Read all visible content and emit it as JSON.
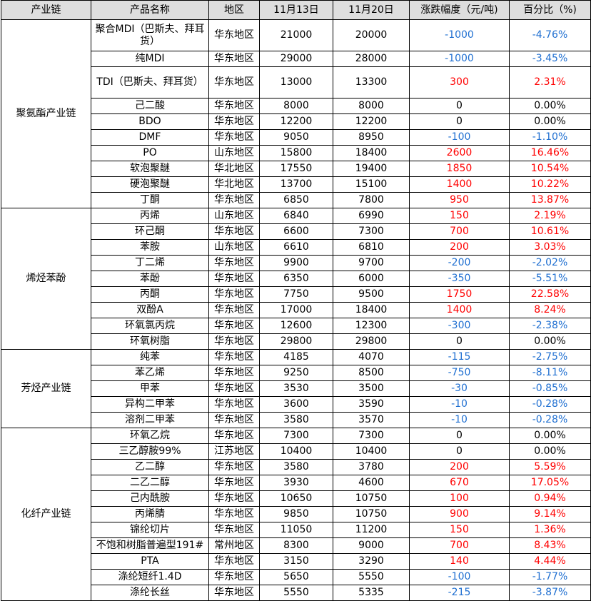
{
  "headers": [
    "产业链",
    "产品名称",
    "地区",
    "11月13日",
    "11月20日",
    "涨跌幅度（元/吨)",
    "百分比（%)"
  ],
  "groups": [
    {
      "name": "聚氨酯产业链",
      "rows": [
        {
          "product": "聚合MDI（巴斯夫、拜耳货）",
          "region": "华东地区",
          "d13": "21000",
          "d20": "20000",
          "change": "-1000",
          "pct": "-4.76%",
          "tall": true
        },
        {
          "product": "纯MDI",
          "region": "华东地区",
          "d13": "29000",
          "d20": "28000",
          "change": "-1000",
          "pct": "-3.45%"
        },
        {
          "product": "TDI（巴斯夫、拜耳货）",
          "region": "华东地区",
          "d13": "13000",
          "d20": "13300",
          "change": "300",
          "pct": "2.31%",
          "tall": true
        },
        {
          "product": "己二酸",
          "region": "华东地区",
          "d13": "8000",
          "d20": "8000",
          "change": "0",
          "pct": "0.00%"
        },
        {
          "product": "BDO",
          "region": "华东地区",
          "d13": "12200",
          "d20": "12200",
          "change": "0",
          "pct": "0.00%"
        },
        {
          "product": "DMF",
          "region": "华东地区",
          "d13": "9050",
          "d20": "8950",
          "change": "-100",
          "pct": "-1.10%"
        },
        {
          "product": "PO",
          "region": "山东地区",
          "d13": "15800",
          "d20": "18400",
          "change": "2600",
          "pct": "16.46%"
        },
        {
          "product": "软泡聚醚",
          "region": "华北地区",
          "d13": "17550",
          "d20": "19400",
          "change": "1850",
          "pct": "10.54%"
        },
        {
          "product": "硬泡聚醚",
          "region": "华北地区",
          "d13": "13700",
          "d20": "15100",
          "change": "1400",
          "pct": "10.22%"
        },
        {
          "product": "丁酮",
          "region": "华东地区",
          "d13": "6850",
          "d20": "7800",
          "change": "950",
          "pct": "13.87%"
        }
      ]
    },
    {
      "name": "烯烃苯酚",
      "rows": [
        {
          "product": "丙烯",
          "region": "山东地区",
          "d13": "6840",
          "d20": "6990",
          "change": "150",
          "pct": "2.19%"
        },
        {
          "product": "环己酮",
          "region": "华东地区",
          "d13": "6600",
          "d20": "7300",
          "change": "700",
          "pct": "10.61%"
        },
        {
          "product": "苯胺",
          "region": "山东地区",
          "d13": "6610",
          "d20": "6810",
          "change": "200",
          "pct": "3.03%"
        },
        {
          "product": "丁二烯",
          "region": "华东地区",
          "d13": "9900",
          "d20": "9700",
          "change": "-200",
          "pct": "-2.02%"
        },
        {
          "product": "苯酚",
          "region": "华东地区",
          "d13": "6350",
          "d20": "6000",
          "change": "-350",
          "pct": "-5.51%"
        },
        {
          "product": "丙酮",
          "region": "华东地区",
          "d13": "7750",
          "d20": "9500",
          "change": "1750",
          "pct": "22.58%"
        },
        {
          "product": "双酚A",
          "region": "华东地区",
          "d13": "17000",
          "d20": "18400",
          "change": "1400",
          "pct": "8.24%"
        },
        {
          "product": "环氧氯丙烷",
          "region": "华东地区",
          "d13": "12600",
          "d20": "12300",
          "change": "-300",
          "pct": "-2.38%"
        },
        {
          "product": "环氧树脂",
          "region": "华东地区",
          "d13": "29800",
          "d20": "29800",
          "change": "0",
          "pct": "0.00%"
        }
      ]
    },
    {
      "name": "芳烃产业链",
      "rows": [
        {
          "product": "纯苯",
          "region": "华东地区",
          "d13": "4185",
          "d20": "4070",
          "change": "-115",
          "pct": "-2.75%"
        },
        {
          "product": "苯乙烯",
          "region": "华东地区",
          "d13": "9250",
          "d20": "8500",
          "change": "-750",
          "pct": "-8.11%"
        },
        {
          "product": "甲苯",
          "region": "华东地区",
          "d13": "3530",
          "d20": "3500",
          "change": "-30",
          "pct": "-0.85%"
        },
        {
          "product": "异构二甲苯",
          "region": "华东地区",
          "d13": "3600",
          "d20": "3590",
          "change": "-10",
          "pct": "-0.28%"
        },
        {
          "product": "溶剂二甲苯",
          "region": "华东地区",
          "d13": "3580",
          "d20": "3570",
          "change": "-10",
          "pct": "-0.28%"
        }
      ]
    },
    {
      "name": "化纤产业链",
      "rows": [
        {
          "product": "环氧乙烷",
          "region": "华东地区",
          "d13": "7300",
          "d20": "7300",
          "change": "0",
          "pct": "0.00%"
        },
        {
          "product": "三乙醇胺99%",
          "region": "江苏地区",
          "d13": "10400",
          "d20": "10400",
          "change": "0",
          "pct": "0.00%"
        },
        {
          "product": "乙二醇",
          "region": "华东地区",
          "d13": "3580",
          "d20": "3780",
          "change": "200",
          "pct": "5.59%"
        },
        {
          "product": "二乙二醇",
          "region": "华东地区",
          "d13": "3930",
          "d20": "4600",
          "change": "670",
          "pct": "17.05%"
        },
        {
          "product": "己内酰胺",
          "region": "华东地区",
          "d13": "10650",
          "d20": "10750",
          "change": "100",
          "pct": "0.94%"
        },
        {
          "product": "丙烯腈",
          "region": "华东地区",
          "d13": "9850",
          "d20": "10750",
          "change": "900",
          "pct": "9.14%"
        },
        {
          "product": "锦纶切片",
          "region": "华东地区",
          "d13": "11050",
          "d20": "11200",
          "change": "150",
          "pct": "1.36%"
        },
        {
          "product": "不饱和树脂普遍型191#",
          "region": "常州地区",
          "d13": "8300",
          "d20": "9000",
          "change": "700",
          "pct": "8.43%"
        },
        {
          "product": "PTA",
          "region": "华东地区",
          "d13": "3150",
          "d20": "3290",
          "change": "140",
          "pct": "4.44%"
        },
        {
          "product": "涤纶短纤1.4D",
          "region": "华东地区",
          "d13": "5650",
          "d20": "5550",
          "change": "-100",
          "pct": "-1.77%"
        },
        {
          "product": "涤纶长丝",
          "region": "华东地区",
          "d13": "5550",
          "d20": "5335",
          "change": "-215",
          "pct": "-3.87%"
        }
      ]
    }
  ],
  "colors": {
    "positive": "#ff0000",
    "negative": "#1f6fd1",
    "zero": "#000000",
    "header_bg": "#dedede",
    "border": "#000000"
  }
}
